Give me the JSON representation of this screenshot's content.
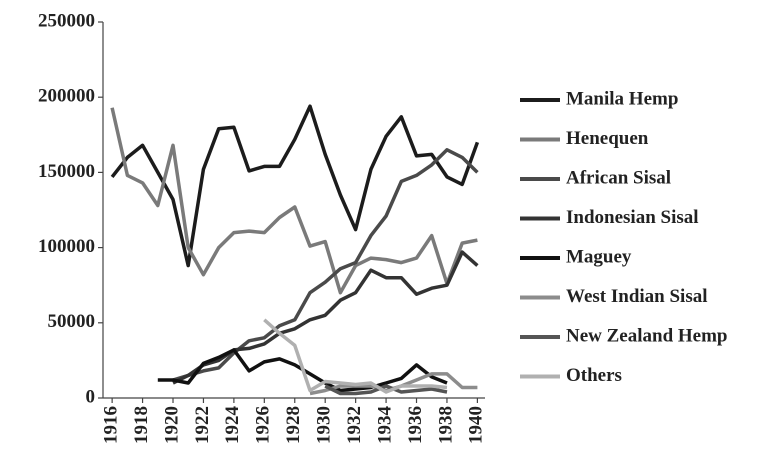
{
  "chart_data": {
    "type": "line",
    "x": [
      1916,
      1917,
      1918,
      1919,
      1920,
      1921,
      1922,
      1923,
      1924,
      1925,
      1926,
      1927,
      1928,
      1929,
      1930,
      1931,
      1932,
      1933,
      1934,
      1935,
      1936,
      1937,
      1938,
      1939,
      1940
    ],
    "xlim": [
      1915.4,
      1940.5
    ],
    "xticks": [
      1916,
      1918,
      1920,
      1922,
      1924,
      1926,
      1928,
      1930,
      1932,
      1934,
      1936,
      1938,
      1940
    ],
    "ylim": [
      0,
      250000
    ],
    "yticks": [
      0,
      50000,
      100000,
      150000,
      200000,
      250000
    ],
    "grid": false,
    "legend": "right",
    "series": [
      {
        "name": "Manila Hemp",
        "color": "#1c1c1c",
        "values": [
          147000,
          160000,
          168000,
          150000,
          132000,
          88000,
          152000,
          179000,
          180000,
          151000,
          154000,
          154000,
          172000,
          194000,
          162000,
          135000,
          112000,
          152000,
          174000,
          187000,
          161000,
          162000,
          147000,
          142000,
          170000
        ]
      },
      {
        "name": "Henequen",
        "color": "#7a7a7a",
        "values": [
          193000,
          148000,
          143000,
          128000,
          168000,
          100000,
          82000,
          100000,
          110000,
          111000,
          110000,
          120000,
          127000,
          101000,
          104000,
          70000,
          88000,
          93000,
          92000,
          90000,
          93000,
          108000,
          76000,
          103000,
          105000
        ]
      },
      {
        "name": "African Sisal",
        "color": "#4a4a4a",
        "values": [
          null,
          null,
          null,
          null,
          12000,
          15000,
          18000,
          20000,
          30000,
          38000,
          40000,
          48000,
          52000,
          70000,
          77000,
          86000,
          90000,
          108000,
          121000,
          144000,
          148000,
          155000,
          165000,
          160000,
          150000
        ]
      },
      {
        "name": "Indonesian Sisal",
        "color": "#333333",
        "values": [
          null,
          null,
          null,
          null,
          10000,
          15000,
          22000,
          25000,
          32000,
          33000,
          36000,
          43000,
          46000,
          52000,
          55000,
          65000,
          70000,
          85000,
          80000,
          80000,
          69000,
          73000,
          75000,
          97000,
          88000
        ]
      },
      {
        "name": "Maguey",
        "color": "#111111",
        "values": [
          null,
          null,
          null,
          12000,
          12000,
          10000,
          23000,
          27000,
          32000,
          18000,
          24000,
          26000,
          22000,
          16000,
          10000,
          5000,
          6000,
          7000,
          10000,
          13000,
          22000,
          14000,
          10000,
          null,
          null
        ]
      },
      {
        "name": "West Indian Sisal",
        "color": "#8c8c8c",
        "values": [
          null,
          null,
          null,
          null,
          null,
          null,
          null,
          null,
          null,
          null,
          null,
          null,
          null,
          3000,
          5000,
          8000,
          8000,
          8000,
          5000,
          8000,
          12000,
          16000,
          16000,
          7000,
          7000
        ]
      },
      {
        "name": "New Zealand Hemp",
        "color": "#555555",
        "values": [
          null,
          null,
          null,
          null,
          null,
          null,
          null,
          null,
          null,
          null,
          null,
          null,
          null,
          null,
          8000,
          3000,
          3000,
          4000,
          8000,
          4000,
          5000,
          6000,
          4000,
          null,
          null
        ]
      },
      {
        "name": "Others",
        "color": "#b0b0b0",
        "values": [
          null,
          null,
          null,
          null,
          null,
          null,
          null,
          null,
          null,
          null,
          52000,
          43000,
          35000,
          5000,
          11000,
          10000,
          9000,
          10000,
          4000,
          8000,
          8000,
          8000,
          7000,
          null,
          null
        ]
      }
    ]
  }
}
